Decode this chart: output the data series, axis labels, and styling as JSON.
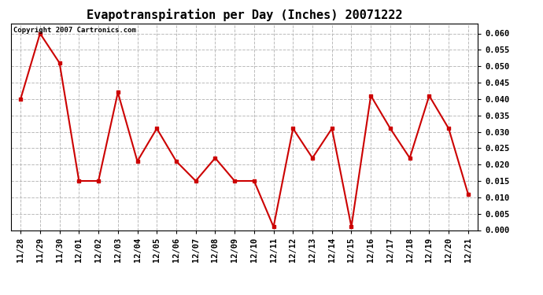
{
  "title": "Evapotranspiration per Day (Inches) 20071222",
  "copyright_text": "Copyright 2007 Cartronics.com",
  "x_labels": [
    "11/28",
    "11/29",
    "11/30",
    "12/01",
    "12/02",
    "12/03",
    "12/04",
    "12/05",
    "12/06",
    "12/07",
    "12/08",
    "12/09",
    "12/10",
    "12/11",
    "12/12",
    "12/13",
    "12/14",
    "12/15",
    "12/16",
    "12/17",
    "12/18",
    "12/19",
    "12/20",
    "12/21"
  ],
  "y_values": [
    0.04,
    0.06,
    0.051,
    0.015,
    0.015,
    0.042,
    0.021,
    0.031,
    0.021,
    0.015,
    0.022,
    0.015,
    0.015,
    0.001,
    0.031,
    0.022,
    0.031,
    0.001,
    0.041,
    0.031,
    0.022,
    0.041,
    0.031,
    0.011
  ],
  "line_color": "#cc0000",
  "marker": "s",
  "marker_size": 3,
  "ylim": [
    0.0,
    0.063
  ],
  "yticks": [
    0.0,
    0.005,
    0.01,
    0.015,
    0.02,
    0.025,
    0.03,
    0.035,
    0.04,
    0.045,
    0.05,
    0.055,
    0.06
  ],
  "grid_color": "#bbbbbb",
  "bg_color": "#ffffff",
  "title_fontsize": 11,
  "copyright_fontsize": 6.5,
  "tick_fontsize": 7.5,
  "linewidth": 1.5
}
